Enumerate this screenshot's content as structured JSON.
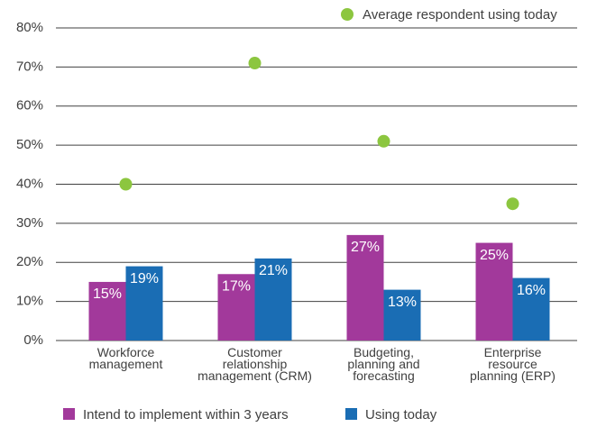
{
  "chart_data": {
    "type": "bar",
    "categories": [
      "Workforce\nmanagement",
      "Customer\nrelationship\nmanagement (CRM)",
      "Budgeting,\nplanning and\nforecasting",
      "Enterprise\nresource\nplanning (ERP)"
    ],
    "series": [
      {
        "name": "Intend to implement within 3 years",
        "type": "bar",
        "color": "#a2399b",
        "values": [
          15,
          17,
          27,
          25
        ],
        "value_labels": [
          "15%",
          "17%",
          "27%",
          "25%"
        ]
      },
      {
        "name": "Using today",
        "type": "bar",
        "color": "#1a6db4",
        "values": [
          19,
          21,
          13,
          16
        ],
        "value_labels": [
          "19%",
          "21%",
          "13%",
          "16%"
        ]
      },
      {
        "name": "Average respondent using today",
        "type": "scatter",
        "color": "#8cc63f",
        "values": [
          40,
          71,
          51,
          35
        ]
      }
    ],
    "ylim": [
      0,
      80
    ],
    "yticks": [
      {
        "value": 0,
        "label": "0%"
      },
      {
        "value": 10,
        "label": "10%"
      },
      {
        "value": 20,
        "label": "20%"
      },
      {
        "value": 30,
        "label": "30%"
      },
      {
        "value": 40,
        "label": "40%"
      },
      {
        "value": 50,
        "label": "50%"
      },
      {
        "value": 60,
        "label": "60%"
      },
      {
        "value": 70,
        "label": "70%"
      },
      {
        "value": 80,
        "label": "80%"
      }
    ],
    "grid": true
  }
}
